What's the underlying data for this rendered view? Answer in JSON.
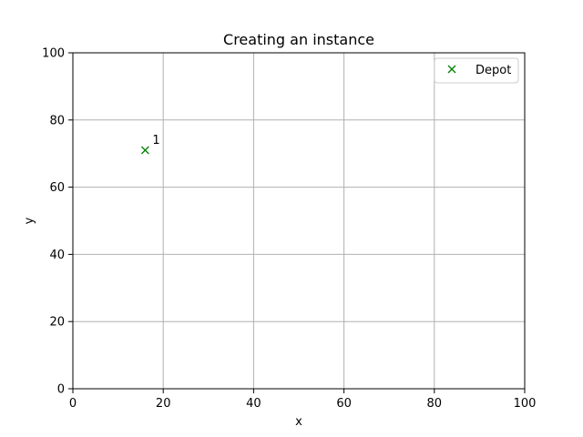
{
  "chart_data": {
    "type": "scatter",
    "title": "Creating an instance",
    "xlabel": "x",
    "ylabel": "y",
    "xlim": [
      0,
      100
    ],
    "ylim": [
      0,
      100
    ],
    "xticks": [
      0,
      20,
      40,
      60,
      80,
      100
    ],
    "yticks": [
      0,
      20,
      40,
      60,
      80,
      100
    ],
    "grid": true,
    "legend_position": "top-right",
    "series": [
      {
        "name": "Depot",
        "marker": "x",
        "color": "#008000",
        "points": [
          {
            "x": 16,
            "y": 71,
            "label": "1"
          }
        ]
      }
    ]
  }
}
